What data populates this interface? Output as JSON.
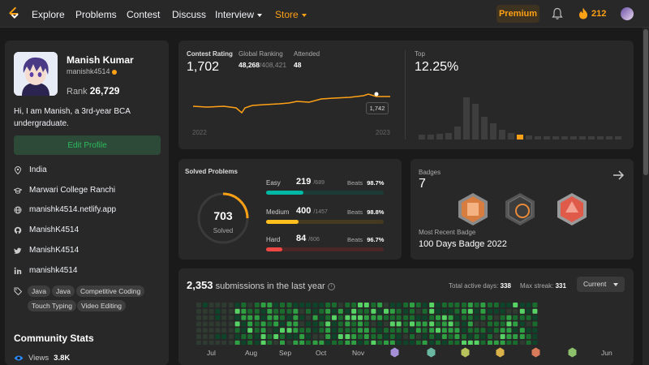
{
  "nav": {
    "links": [
      "Explore",
      "Problems",
      "Contest",
      "Discuss",
      "Interview",
      "Store"
    ],
    "premium": "Premium",
    "streak": "212"
  },
  "profile": {
    "name": "Manish Kumar",
    "handle": "manishk4514",
    "rank_label": "Rank",
    "rank": "26,729",
    "bio": "Hi, I am Manish, a 3rd-year BCA undergraduate.",
    "edit": "Edit Profile",
    "info": [
      "India",
      "Marwari College Ranchi",
      "manishk4514.netlify.app",
      "ManishK4514",
      "ManishK4514",
      "manishk4514"
    ],
    "tags": [
      "Java",
      "Java",
      "Competitive Coding",
      "Touch Typing",
      "Video Editing"
    ],
    "community_title": "Community Stats",
    "views_label": "Views",
    "views": "3.8K"
  },
  "contest": {
    "rating_label": "Contest Rating",
    "rating": "1,702",
    "global_label": "Global Ranking",
    "global_rank": "48,268",
    "global_total": "/408,421",
    "attended_label": "Attended",
    "attended": "48",
    "tooltip": "1,742",
    "x_start": "2022",
    "x_end": "2023",
    "top_label": "Top",
    "top_value": "12.25%"
  },
  "solved": {
    "title": "Solved Problems",
    "total": "703",
    "total_label": "Solved",
    "beats_label": "Beats",
    "rows": [
      {
        "name": "Easy",
        "count": "219",
        "total": "/689",
        "beats": "98.7%"
      },
      {
        "name": "Medium",
        "count": "400",
        "total": "/1457",
        "beats": "98.8%"
      },
      {
        "name": "Hard",
        "count": "84",
        "total": "/606",
        "beats": "96.7%"
      }
    ],
    "progress": [
      0.318,
      0.275,
      0.139
    ]
  },
  "badges": {
    "title": "Badges",
    "count": "7",
    "recent_label": "Most Recent Badge",
    "recent": "100 Days Badge 2022"
  },
  "submissions": {
    "count": "2,353",
    "suffix": "submissions in the last year",
    "active_label": "Total active days:",
    "active": "338",
    "streak_label": "Max streak:",
    "streak": "331",
    "select": "Current",
    "months": [
      "Jul",
      "Aug",
      "Sep",
      "Oct",
      "Nov",
      "Jun"
    ]
  },
  "colors": {
    "accent": "#ffa116",
    "easy": "#00b8a3",
    "medium": "#ffc01e",
    "hard": "#ef4743",
    "green": "#2cbb5d"
  }
}
